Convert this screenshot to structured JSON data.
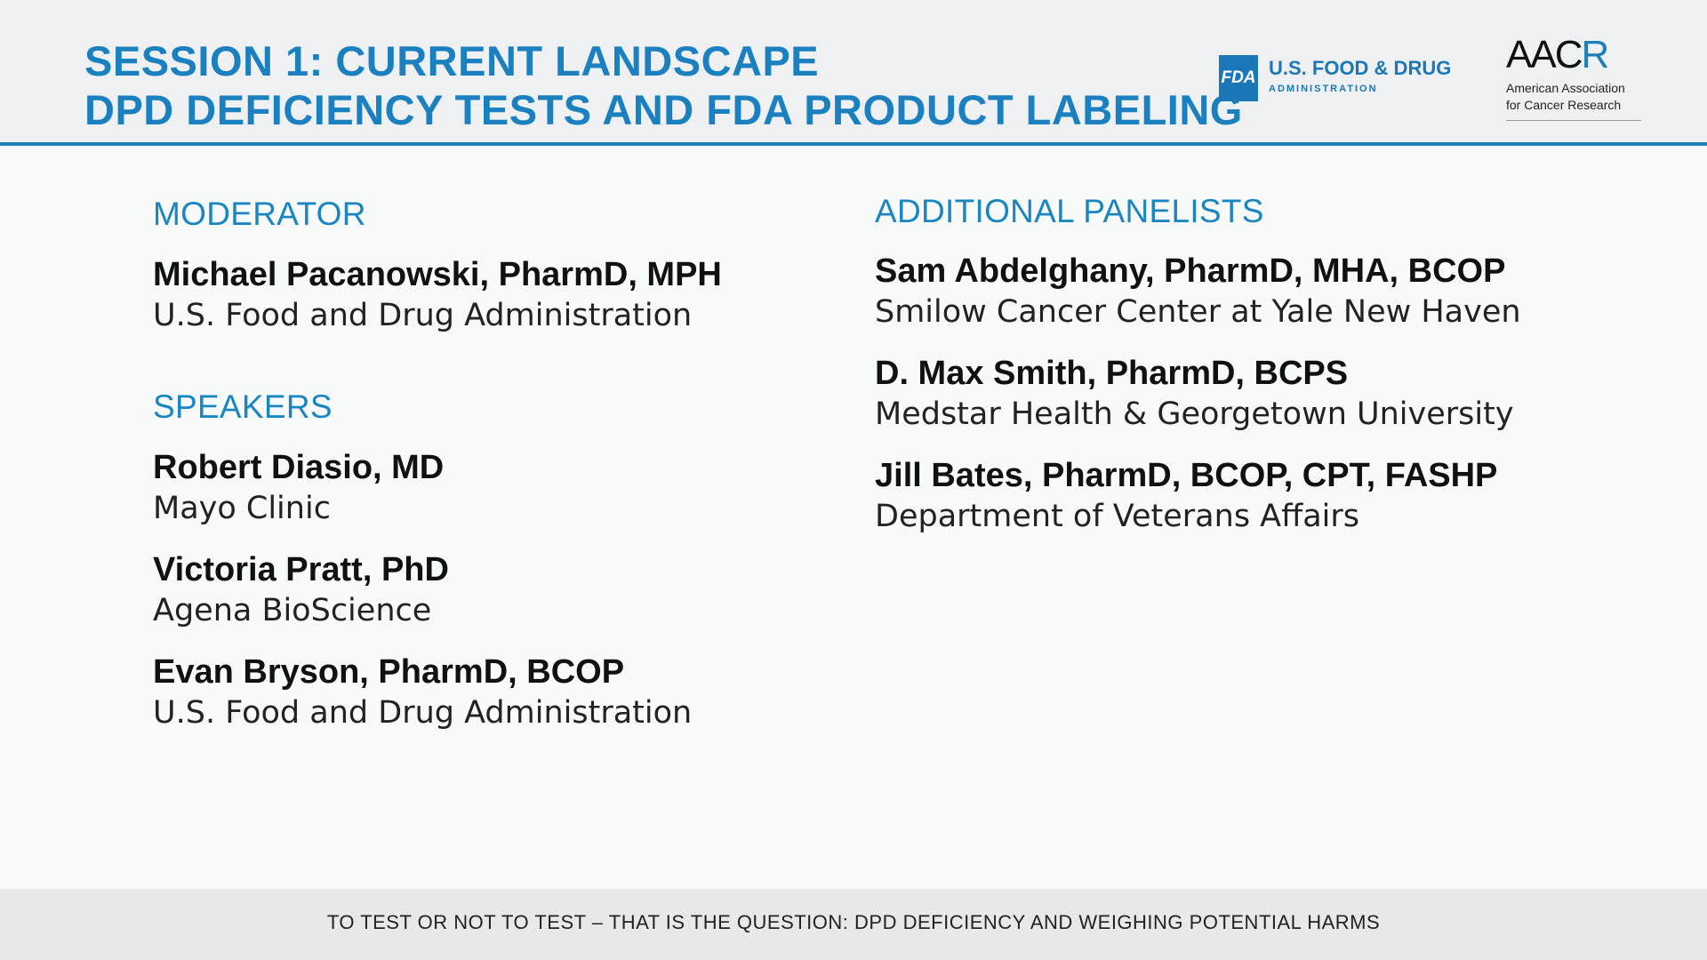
{
  "header": {
    "title_line1": "SESSION 1: CURRENT LANDSCAPE",
    "title_line2": "DPD DEFICIENCY TESTS AND FDA PRODUCT LABELING",
    "fda_logo": {
      "mark": "FDA",
      "name": "U.S. FOOD & DRUG",
      "sub": "ADMINISTRATION"
    },
    "aacr_logo": {
      "mark_a": "AAC",
      "mark_r": "R",
      "line1": "American Association",
      "line2": "for Cancer Research"
    }
  },
  "left": {
    "moderator_label": "MODERATOR",
    "moderator": {
      "name": "Michael Pacanowski, PharmD, MPH",
      "affiliation": "U.S. Food and Drug Administration"
    },
    "speakers_label": "SPEAKERS",
    "speakers": [
      {
        "name": "Robert Diasio, MD",
        "affiliation": "Mayo Clinic"
      },
      {
        "name": "Victoria Pratt, PhD",
        "affiliation": "Agena BioScience"
      },
      {
        "name": "Evan Bryson, PharmD, BCOP",
        "affiliation": "U.S. Food and Drug Administration"
      }
    ]
  },
  "right": {
    "panelists_label": "ADDITIONAL PANELISTS",
    "panelists": [
      {
        "name": "Sam Abdelghany, PharmD, MHA, BCOP",
        "affiliation": "Smilow Cancer Center at Yale New Haven"
      },
      {
        "name": "D. Max Smith, PharmD, BCPS",
        "affiliation": "Medstar Health & Georgetown University"
      },
      {
        "name": "Jill Bates, PharmD, BCOP, CPT, FASHP",
        "affiliation": "Department of Veterans Affairs"
      }
    ]
  },
  "footer": {
    "text": "TO TEST OR NOT TO TEST – THAT IS THE QUESTION: DPD DEFICIENCY AND WEIGHING POTENTIAL HARMS"
  },
  "colors": {
    "accent": "#1a80bf",
    "header_bg": "#eef0f2",
    "footer_bg": "#e6e8ea"
  }
}
